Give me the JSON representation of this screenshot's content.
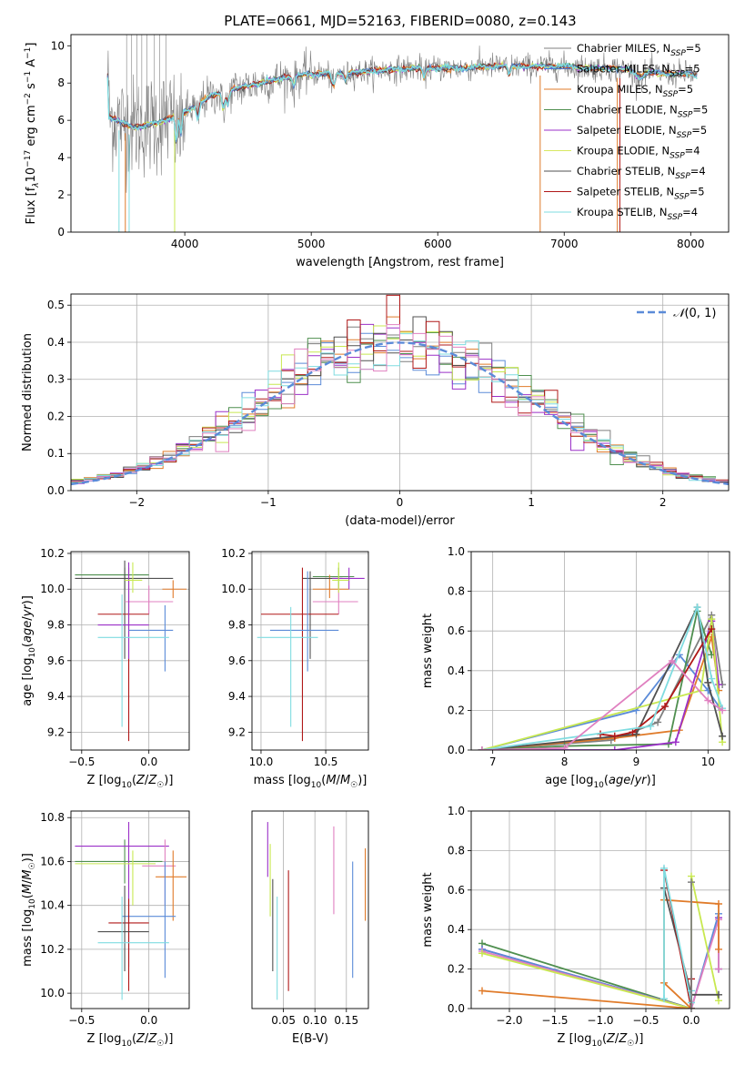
{
  "figure": {
    "title": "PLATE=0661, MJD=52163, FIBERID=0080, z=0.143"
  },
  "legend_entries": [
    {
      "label": "Chabrier MILES, N",
      "sub": "SSP",
      "suffix": "=5",
      "color": "#7f7f7f"
    },
    {
      "label": "Salpeter MILES, N",
      "sub": "SSP",
      "suffix": "=5",
      "color": "#4878cf"
    },
    {
      "label": "Kroupa MILES, N",
      "sub": "SSP",
      "suffix": "=5",
      "color": "#e07b2a"
    },
    {
      "label": "Chabrier ELODIE, N",
      "sub": "SSP",
      "suffix": "=5",
      "color": "#4f8f4f"
    },
    {
      "label": "Salpeter ELODIE, N",
      "sub": "SSP",
      "suffix": "=5",
      "color": "#9b30c8"
    },
    {
      "label": "Kroupa ELODIE, N",
      "sub": "SSP",
      "suffix": "=4",
      "color": "#d8e860"
    },
    {
      "label": "Chabrier STELIB, N",
      "sub": "SSP",
      "suffix": "=4",
      "color": "#505050"
    },
    {
      "label": "Salpeter STELIB, N",
      "sub": "SSP",
      "suffix": "=5",
      "color": "#b01818"
    },
    {
      "label": "Kroupa STELIB, N",
      "sub": "SSP",
      "suffix": "=4",
      "color": "#7fdce0"
    }
  ],
  "colors": {
    "cm": "#7f7f7f",
    "sm": "#5b8bd8",
    "km": "#e07b2a",
    "ce": "#4f8f4f",
    "se": "#9b30c8",
    "ke": "#c8e850",
    "cs": "#505050",
    "ss": "#b01818",
    "ks": "#7fdce0",
    "pink": "#e080c0",
    "gauss": "#5b8bd8",
    "grid": "#b0b0b0"
  },
  "chart_data": [
    {
      "id": "spectrum",
      "type": "line",
      "title": "PLATE=0661, MJD=52163, FIBERID=0080, z=0.143",
      "xlabel": "wavelength [Angstrom, rest frame]",
      "ylabel_parts": [
        "Flux [f",
        "λ",
        "10",
        "−17",
        " erg cm",
        "−2",
        " s",
        "−1",
        " A",
        "−1",
        "]"
      ],
      "xlim": [
        3100,
        8300
      ],
      "ylim": [
        0,
        10.6
      ],
      "xticks": [
        4000,
        5000,
        6000,
        7000,
        8000
      ],
      "yticks": [
        0,
        2,
        4,
        6,
        8,
        10
      ],
      "continuum_x": [
        3400,
        3600,
        3800,
        4000,
        4200,
        4400,
        4600,
        4800,
        5000,
        5200,
        5400,
        5600,
        5800,
        6000,
        6200,
        6400,
        6600,
        6800,
        7000,
        7200,
        7400,
        7600,
        7800,
        8000,
        8050
      ],
      "continuum_y": [
        6.2,
        5.6,
        5.9,
        6.4,
        7.3,
        7.7,
        8.0,
        8.3,
        8.5,
        8.5,
        8.6,
        8.7,
        8.8,
        8.8,
        8.8,
        8.9,
        8.9,
        8.9,
        8.9,
        8.8,
        8.8,
        8.6,
        8.5,
        8.5,
        8.4
      ],
      "grid": false
    },
    {
      "id": "residuals",
      "type": "line",
      "xlabel": "(data-model)/error",
      "ylabel": "Normed distribution",
      "xlim": [
        -2.5,
        2.5
      ],
      "ylim": [
        0,
        0.53
      ],
      "xticks": [
        -2,
        -1,
        0,
        1,
        2
      ],
      "yticks": [
        0.0,
        0.1,
        0.2,
        0.3,
        0.4,
        0.5
      ],
      "legend": "N(0,1)",
      "grid": true
    },
    {
      "id": "age_vs_Z",
      "type": "scatter",
      "xlabel": "Z [log10(Z/Z☉)]",
      "ylabel": "age [log10(age/yr)]",
      "xlim": [
        -0.58,
        0.3
      ],
      "ylim": [
        9.1,
        10.21
      ],
      "xticks": [
        -0.5,
        0.0
      ],
      "yticks": [
        9.2,
        9.4,
        9.6,
        9.8,
        10.0,
        10.2
      ],
      "points": [
        {
          "c": "ce",
          "x": -0.18,
          "y": 10.08,
          "x0": -0.55,
          "x1": 0.0,
          "y0": 10.0,
          "y1": 10.12
        },
        {
          "c": "km",
          "x": 0.18,
          "y": 10.0,
          "x0": 0.1,
          "x1": 0.28,
          "y0": 9.95,
          "y1": 10.05
        },
        {
          "c": "cs",
          "x": -0.18,
          "y": 10.06,
          "x0": -0.55,
          "x1": 0.18,
          "y0": 9.61,
          "y1": 10.16
        },
        {
          "c": "pink",
          "x": 0.0,
          "y": 9.93,
          "x0": -0.18,
          "x1": 0.18,
          "y0": 9.86,
          "y1": 10.02
        },
        {
          "c": "ss",
          "x": -0.15,
          "y": 9.86,
          "x0": -0.38,
          "x1": 0.0,
          "y0": 9.15,
          "y1": 10.12
        },
        {
          "c": "se",
          "x": -0.15,
          "y": 9.8,
          "x0": -0.38,
          "x1": 0.0,
          "y0": 9.61,
          "y1": 10.15
        },
        {
          "c": "sm",
          "x": 0.12,
          "y": 9.77,
          "x0": -0.15,
          "x1": 0.18,
          "y0": 9.54,
          "y1": 9.91
        },
        {
          "c": "ks",
          "x": -0.2,
          "y": 9.73,
          "x0": -0.38,
          "x1": 0.15,
          "y0": 9.23,
          "y1": 9.97
        },
        {
          "c": "ke",
          "x": -0.12,
          "y": 10.05,
          "x0": -0.18,
          "x1": -0.05,
          "y0": 9.98,
          "y1": 10.15
        }
      ],
      "grid": true
    },
    {
      "id": "age_vs_mass",
      "type": "scatter",
      "xlabel": "mass [log10(M/M☉)]",
      "ylabel": "",
      "xlim": [
        9.93,
        10.83
      ],
      "ylim": [
        9.1,
        10.21
      ],
      "xticks": [
        10.0,
        10.5
      ],
      "yticks": [
        9.2,
        9.4,
        9.6,
        9.8,
        10.0,
        10.2
      ],
      "points": [
        {
          "c": "ce",
          "x": 10.6,
          "y": 10.07,
          "x0": 10.4,
          "x1": 10.72,
          "y0": 10.0,
          "y1": 10.12
        },
        {
          "c": "km",
          "x": 10.53,
          "y": 10.0,
          "x0": 10.4,
          "x1": 10.68,
          "y0": 9.95,
          "y1": 10.08
        },
        {
          "c": "cs",
          "x": 10.38,
          "y": 10.06,
          "x0": 10.32,
          "x1": 10.63,
          "y0": 9.61,
          "y1": 10.1
        },
        {
          "c": "pink",
          "x": 10.6,
          "y": 9.93,
          "x0": 10.4,
          "x1": 10.75,
          "y0": 9.86,
          "y1": 10.02
        },
        {
          "c": "ss",
          "x": 10.32,
          "y": 9.86,
          "x0": 10.0,
          "x1": 10.6,
          "y0": 9.15,
          "y1": 10.12
        },
        {
          "c": "se",
          "x": 10.68,
          "y": 10.06,
          "x0": 10.55,
          "x1": 10.8,
          "y0": 10.0,
          "y1": 10.12
        },
        {
          "c": "sm",
          "x": 10.36,
          "y": 9.77,
          "x0": 10.07,
          "x1": 10.6,
          "y0": 9.54,
          "y1": 10.1
        },
        {
          "c": "ks",
          "x": 10.23,
          "y": 9.73,
          "x0": 9.97,
          "x1": 10.44,
          "y0": 9.23,
          "y1": 9.9
        },
        {
          "c": "ke",
          "x": 10.6,
          "y": 10.05,
          "x0": 10.55,
          "x1": 10.68,
          "y0": 9.98,
          "y1": 10.15
        }
      ],
      "grid": true
    },
    {
      "id": "mass_weight_vs_age",
      "type": "line",
      "xlabel": "age [log10(age/yr)]",
      "ylabel": "mass weight",
      "xlim": [
        6.7,
        10.3
      ],
      "ylim": [
        0,
        1.0
      ],
      "xticks": [
        7,
        8,
        9,
        10
      ],
      "yticks": [
        0.0,
        0.2,
        0.4,
        0.6,
        0.8,
        1.0
      ],
      "series": [
        {
          "c": "cm",
          "x": [
            6.85,
            8.65,
            9.3,
            10.05,
            10.2
          ],
          "y": [
            0.0,
            0.05,
            0.14,
            0.68,
            0.33
          ]
        },
        {
          "c": "sm",
          "x": [
            6.85,
            9.0,
            9.6,
            10.0,
            10.15
          ],
          "y": [
            0.0,
            0.2,
            0.48,
            0.3,
            0.22
          ]
        },
        {
          "c": "km",
          "x": [
            6.85,
            8.7,
            9.6,
            10.05,
            10.15
          ],
          "y": [
            0.0,
            0.06,
            0.1,
            0.57,
            0.3
          ]
        },
        {
          "c": "ce",
          "x": [
            6.85,
            8.0,
            9.45,
            9.85,
            10.05
          ],
          "y": [
            0.0,
            0.02,
            0.03,
            0.7,
            0.48
          ]
        },
        {
          "c": "se",
          "x": [
            6.85,
            8.7,
            9.55,
            10.05,
            10.15
          ],
          "y": [
            0.0,
            0.0,
            0.04,
            0.65,
            0.33
          ]
        },
        {
          "c": "ke",
          "x": [
            6.85,
            9.9,
            10.05,
            10.2
          ],
          "y": [
            0.0,
            0.3,
            0.66,
            0.04
          ]
        },
        {
          "c": "cs",
          "x": [
            6.85,
            9.0,
            9.85,
            10.0,
            10.2
          ],
          "y": [
            0.0,
            0.08,
            0.72,
            0.34,
            0.07
          ]
        },
        {
          "c": "ss",
          "x": [
            8.5,
            8.7,
            8.95,
            9.4,
            10.05
          ],
          "y": [
            0.08,
            0.07,
            0.09,
            0.22,
            0.61
          ]
        },
        {
          "c": "ks",
          "x": [
            6.85,
            9.2,
            9.85,
            10.05,
            10.2
          ],
          "y": [
            0.0,
            0.12,
            0.72,
            0.36,
            0.21
          ]
        },
        {
          "c": "pink",
          "x": [
            6.85,
            8.0,
            9.5,
            10.0,
            10.2
          ],
          "y": [
            0.0,
            0.01,
            0.45,
            0.25,
            0.2
          ]
        }
      ],
      "grid": true
    },
    {
      "id": "mass_vs_Z",
      "type": "scatter",
      "xlabel": "Z [log10(Z/Z☉)]",
      "ylabel": "mass [log10(M/M☉)]",
      "xlim": [
        -0.58,
        0.3
      ],
      "ylim": [
        9.93,
        10.83
      ],
      "xticks": [
        -0.5,
        0.0
      ],
      "yticks": [
        10.0,
        10.2,
        10.4,
        10.6,
        10.8
      ],
      "points": [
        {
          "c": "ce",
          "x": -0.18,
          "y": 10.6,
          "x0": -0.55,
          "x1": 0.1,
          "y0": 10.5,
          "y1": 10.7
        },
        {
          "c": "se",
          "x": -0.15,
          "y": 10.67,
          "x0": -0.55,
          "x1": 0.15,
          "y0": 10.12,
          "y1": 10.78
        },
        {
          "c": "ke",
          "x": -0.12,
          "y": 10.59,
          "x0": -0.55,
          "x1": 0.05,
          "y0": 10.4,
          "y1": 10.65
        },
        {
          "c": "pink",
          "x": 0.12,
          "y": 10.58,
          "x0": -0.05,
          "x1": 0.2,
          "y0": 10.4,
          "y1": 10.7
        },
        {
          "c": "km",
          "x": 0.18,
          "y": 10.53,
          "x0": 0.05,
          "x1": 0.28,
          "y0": 10.33,
          "y1": 10.65
        },
        {
          "c": "sm",
          "x": 0.12,
          "y": 10.35,
          "x0": -0.2,
          "x1": 0.2,
          "y0": 10.07,
          "y1": 10.6
        },
        {
          "c": "ss",
          "x": -0.15,
          "y": 10.32,
          "x0": -0.3,
          "x1": 0.0,
          "y0": 10.01,
          "y1": 10.43
        },
        {
          "c": "cs",
          "x": -0.18,
          "y": 10.28,
          "x0": -0.38,
          "x1": 0.0,
          "y0": 10.1,
          "y1": 10.49
        },
        {
          "c": "ks",
          "x": -0.2,
          "y": 10.23,
          "x0": -0.38,
          "x1": 0.15,
          "y0": 9.97,
          "y1": 10.44
        }
      ],
      "grid": true
    },
    {
      "id": "mass_vs_ebv",
      "type": "scatter",
      "xlabel": "E(B-V)",
      "ylabel": "",
      "xlim": [
        0.0,
        0.185
      ],
      "ylim": [
        9.93,
        10.83
      ],
      "xticks": [
        0.05,
        0.1,
        0.15
      ],
      "xticklabels": [
        "0.05",
        "0.10",
        "0.15"
      ],
      "points": [
        {
          "c": "se",
          "x": 0.025,
          "y0": 10.53,
          "y1": 10.78
        },
        {
          "c": "ke",
          "x": 0.029,
          "y0": 10.35,
          "y1": 10.68
        },
        {
          "c": "cs",
          "x": 0.033,
          "y0": 10.1,
          "y1": 10.52
        },
        {
          "c": "ks",
          "x": 0.04,
          "y0": 9.97,
          "y1": 10.44
        },
        {
          "c": "ss",
          "x": 0.058,
          "y0": 10.01,
          "y1": 10.56
        },
        {
          "c": "pink",
          "x": 0.13,
          "y0": 10.36,
          "y1": 10.76
        },
        {
          "c": "sm",
          "x": 0.16,
          "y0": 10.07,
          "y1": 10.6
        },
        {
          "c": "km",
          "x": 0.18,
          "y0": 10.33,
          "y1": 10.66
        }
      ],
      "grid": true
    },
    {
      "id": "mass_weight_vs_Z",
      "type": "line",
      "xlabel": "Z [log10(Z/Z☉)]",
      "ylabel": "mass weight",
      "xlim": [
        -2.42,
        0.42
      ],
      "ylim": [
        0,
        1.0
      ],
      "xticks": [
        -2.0,
        -1.5,
        -1.0,
        -0.5,
        0.0
      ],
      "yticks": [
        0.0,
        0.2,
        0.4,
        0.6,
        0.8,
        1.0
      ],
      "series": [
        {
          "c": "ce",
          "x": [
            -2.3,
            0.0
          ],
          "y": [
            0.33,
            0.0
          ]
        },
        {
          "c": "se",
          "x": [
            -2.3,
            0.0,
            0.3,
            0.3
          ],
          "y": [
            0.3,
            0.0,
            0.46,
            0.2
          ]
        },
        {
          "c": "sm",
          "x": [
            -2.3,
            0.0,
            0.3,
            0.3
          ],
          "y": [
            0.3,
            0.0,
            0.48,
            0.2
          ]
        },
        {
          "c": "pink",
          "x": [
            -2.3,
            0.0,
            0.3,
            0.3
          ],
          "y": [
            0.29,
            0.0,
            0.45,
            0.2
          ]
        },
        {
          "c": "ke",
          "x": [
            -2.3,
            0.0,
            0.0,
            0.3
          ],
          "y": [
            0.28,
            0.0,
            0.67,
            0.04
          ]
        },
        {
          "c": "km",
          "x": [
            -2.3,
            0.0,
            -0.3,
            -0.3,
            0.3,
            0.3
          ],
          "y": [
            0.09,
            0.0,
            0.13,
            0.55,
            0.53,
            0.3
          ]
        },
        {
          "c": "cs",
          "x": [
            -0.3,
            0.0,
            0.3
          ],
          "y": [
            0.61,
            0.07,
            0.07
          ]
        },
        {
          "c": "ss",
          "x": [
            -0.3,
            0.0,
            0.0
          ],
          "y": [
            0.7,
            0.0,
            0.15
          ]
        },
        {
          "c": "ks",
          "x": [
            -0.3,
            -0.3,
            0.0,
            0.0
          ],
          "y": [
            0.05,
            0.71,
            0.03,
            0.09
          ]
        },
        {
          "c": "cm",
          "x": [
            0.0,
            0.0
          ],
          "y": [
            0.0,
            0.64
          ]
        }
      ],
      "grid": true
    }
  ]
}
